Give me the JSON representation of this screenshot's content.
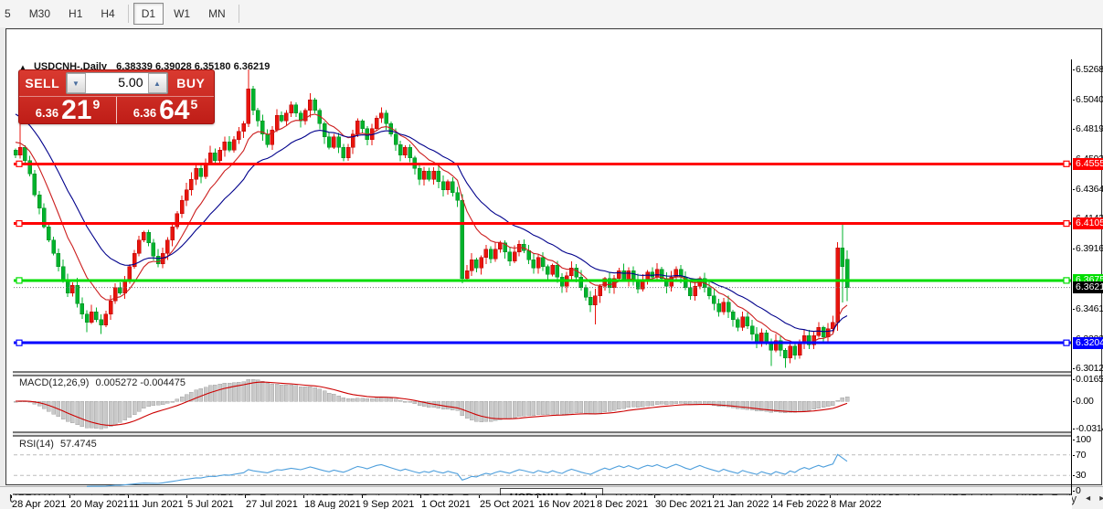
{
  "toolbar": {
    "items": [
      {
        "label": "5"
      },
      {
        "label": "M30"
      },
      {
        "label": "H1"
      },
      {
        "label": "H4"
      },
      {
        "sep": true
      },
      {
        "label": "D1",
        "active": true
      },
      {
        "label": "W1"
      },
      {
        "label": "MN"
      },
      {
        "sep": true
      }
    ]
  },
  "header": {
    "arrow": "▲",
    "symbol": "USDCNH-,Daily",
    "ohlc_text": "6.38339 6.39028 6.35180 6.36219"
  },
  "trade_widget": {
    "sell_label": "SELL",
    "buy_label": "BUY",
    "volume": "5.00",
    "down_arrow": "▼",
    "up_arrow": "▲",
    "sell_price_small": "6.36",
    "sell_price_big": "21",
    "sell_price_sup": "9",
    "buy_price_small": "6.36",
    "buy_price_big": "64",
    "buy_price_sup": "5"
  },
  "chart_data": {
    "type": "candlestick",
    "symbol": "USDCNH-, Daily",
    "current_ohlc": {
      "open": 6.38339,
      "high": 6.39028,
      "low": 6.3518,
      "close": 6.36219
    },
    "colors": {
      "up_fill": "#e8150d",
      "up_stroke": "#b50000",
      "down_fill": "#00b32c",
      "down_stroke": "#00871f",
      "ma_fast": "#cc1f1f",
      "ma_slow": "#00008b",
      "macd_bar": "#c9c9c9",
      "macd_bar_stroke": "#a6a6a6",
      "macd_signal": "#cc0000",
      "rsi_line": "#4e9fdc",
      "rsi_level": "#bbbbbb"
    },
    "price_axis_ticks": [
      {
        "label": "6.52680",
        "price": 6.5268
      },
      {
        "label": "6.50405",
        "price": 6.50405
      },
      {
        "label": "6.48195",
        "price": 6.48195
      },
      {
        "label": "6.45930",
        "price": 6.4593
      },
      {
        "label": "6.43645",
        "price": 6.43645
      },
      {
        "label": "6.41435",
        "price": 6.41435
      },
      {
        "label": "6.39160",
        "price": 6.3916
      },
      {
        "label": "6.36885",
        "price": 6.36885
      },
      {
        "label": "6.34610",
        "price": 6.3461
      },
      {
        "label": "6.32335",
        "price": 6.32335
      },
      {
        "label": "6.30125",
        "price": 6.30125
      }
    ],
    "axis_anchor": {
      "top_price": 6.5268,
      "bottom_price": 6.30125
    },
    "levels": [
      {
        "label": "6.45555",
        "price": 6.45555,
        "color": "#ff0000"
      },
      {
        "label": "6.41052",
        "price": 6.41052,
        "color": "#ff0000"
      },
      {
        "label": "6.36753",
        "price": 6.36753,
        "color": "#00dd00"
      },
      {
        "label": "6.32045",
        "price": 6.32045,
        "color": "#0000ff"
      }
    ],
    "current_price": {
      "label": "6.36219",
      "price": 6.36219,
      "color": "#000000"
    },
    "x_axis_dates": [
      "28 Apr 2021",
      "20 May 2021",
      "11 Jun 2021",
      "5 Jul 2021",
      "27 Jul 2021",
      "18 Aug 2021",
      "9 Sep 2021",
      "1 Oct 2021",
      "25 Oct 2021",
      "16 Nov 2021",
      "8 Dec 2021",
      "30 Dec 2021",
      "21 Jan 2022",
      "14 Feb 2022",
      "8 Mar 2022"
    ],
    "closes": [
      6.462,
      6.468,
      6.458,
      6.448,
      6.432,
      6.422,
      6.408,
      6.398,
      6.388,
      6.378,
      6.368,
      6.358,
      6.364,
      6.35,
      6.342,
      6.336,
      6.344,
      6.338,
      6.334,
      6.342,
      6.352,
      6.362,
      6.358,
      6.368,
      6.378,
      6.388,
      6.398,
      6.404,
      6.396,
      6.386,
      6.38,
      6.388,
      6.398,
      6.408,
      6.418,
      6.428,
      6.436,
      6.444,
      6.452,
      6.446,
      6.456,
      6.464,
      6.458,
      6.466,
      6.472,
      6.466,
      6.474,
      6.48,
      6.486,
      6.512,
      6.496,
      6.488,
      6.478,
      6.47,
      6.481,
      6.492,
      6.488,
      6.494,
      6.5,
      6.494,
      6.488,
      6.496,
      6.504,
      6.496,
      6.486,
      6.476,
      6.468,
      6.476,
      6.468,
      6.46,
      6.468,
      6.478,
      6.488,
      6.482,
      6.474,
      6.482,
      6.49,
      6.494,
      6.486,
      6.478,
      6.47,
      6.462,
      6.468,
      6.46,
      6.452,
      6.444,
      6.45,
      6.444,
      6.45,
      6.442,
      6.436,
      6.442,
      6.434,
      6.428,
      6.369,
      6.375,
      6.383,
      6.377,
      6.385,
      6.391,
      6.384,
      6.391,
      6.396,
      6.389,
      6.382,
      6.389,
      6.395,
      6.39,
      6.383,
      6.377,
      6.385,
      6.378,
      6.372,
      6.379,
      6.37,
      6.363,
      6.371,
      6.377,
      6.37,
      6.362,
      6.355,
      6.349,
      6.356,
      6.363,
      6.369,
      6.362,
      6.369,
      6.375,
      6.368,
      6.375,
      6.368,
      6.361,
      6.368,
      6.374,
      6.37,
      6.376,
      6.369,
      6.363,
      6.37,
      6.376,
      6.37,
      6.362,
      6.356,
      6.363,
      6.369,
      6.362,
      6.356,
      6.35,
      6.344,
      6.351,
      6.344,
      6.338,
      6.332,
      6.34,
      6.333,
      6.327,
      6.321,
      6.328,
      6.321,
      6.315,
      6.322,
      6.315,
      6.309,
      6.318,
      6.311,
      6.32,
      6.326,
      6.319,
      6.326,
      6.332,
      6.325,
      6.331,
      6.336,
      6.392,
      6.378,
      6.36219
    ],
    "open_overrides": {
      "175": 6.38339
    },
    "high_overrides": {
      "1": 6.492,
      "49": 6.5268,
      "62": 6.509,
      "174": 6.4103,
      "175": 6.39028
    },
    "low_overrides": {
      "15": 6.3285,
      "18": 6.327,
      "94": 6.3655,
      "122": 6.3345,
      "159": 6.303,
      "162": 6.3015,
      "173": 6.3295,
      "174": 6.351,
      "175": 6.3518
    },
    "macd": {
      "name": "MACD(12,26,9)",
      "values_text": "0.005272 -0.004475",
      "params": {
        "fast": 12,
        "slow": 26,
        "signal": 9
      },
      "axis_labels": {
        "max": "0.016586",
        "zero": "0.00",
        "min": "-0.031425"
      }
    },
    "rsi": {
      "name": "RSI(14)",
      "value_text": "57.4745",
      "period": 14,
      "axis_labels": [
        "100",
        "70",
        "30",
        "0"
      ],
      "level_lines": [
        70,
        30
      ]
    }
  },
  "tabs": {
    "items": [
      "USDX,Weekly",
      "EURUSD-,Daily",
      "AUDUSD-,Daily",
      "USDCHF-,Daily",
      "USDCAD-,Daily",
      "USDCNH-,Daily",
      "XAUUSD-,M15",
      "UKOil-,H1",
      "DJ30-,Daily",
      "UK100-,H1",
      "USOil-,H1",
      "HK50-,Daily"
    ],
    "active": "USDCNH-,Daily",
    "scroll_left": "◂",
    "scroll_right": "▸"
  }
}
